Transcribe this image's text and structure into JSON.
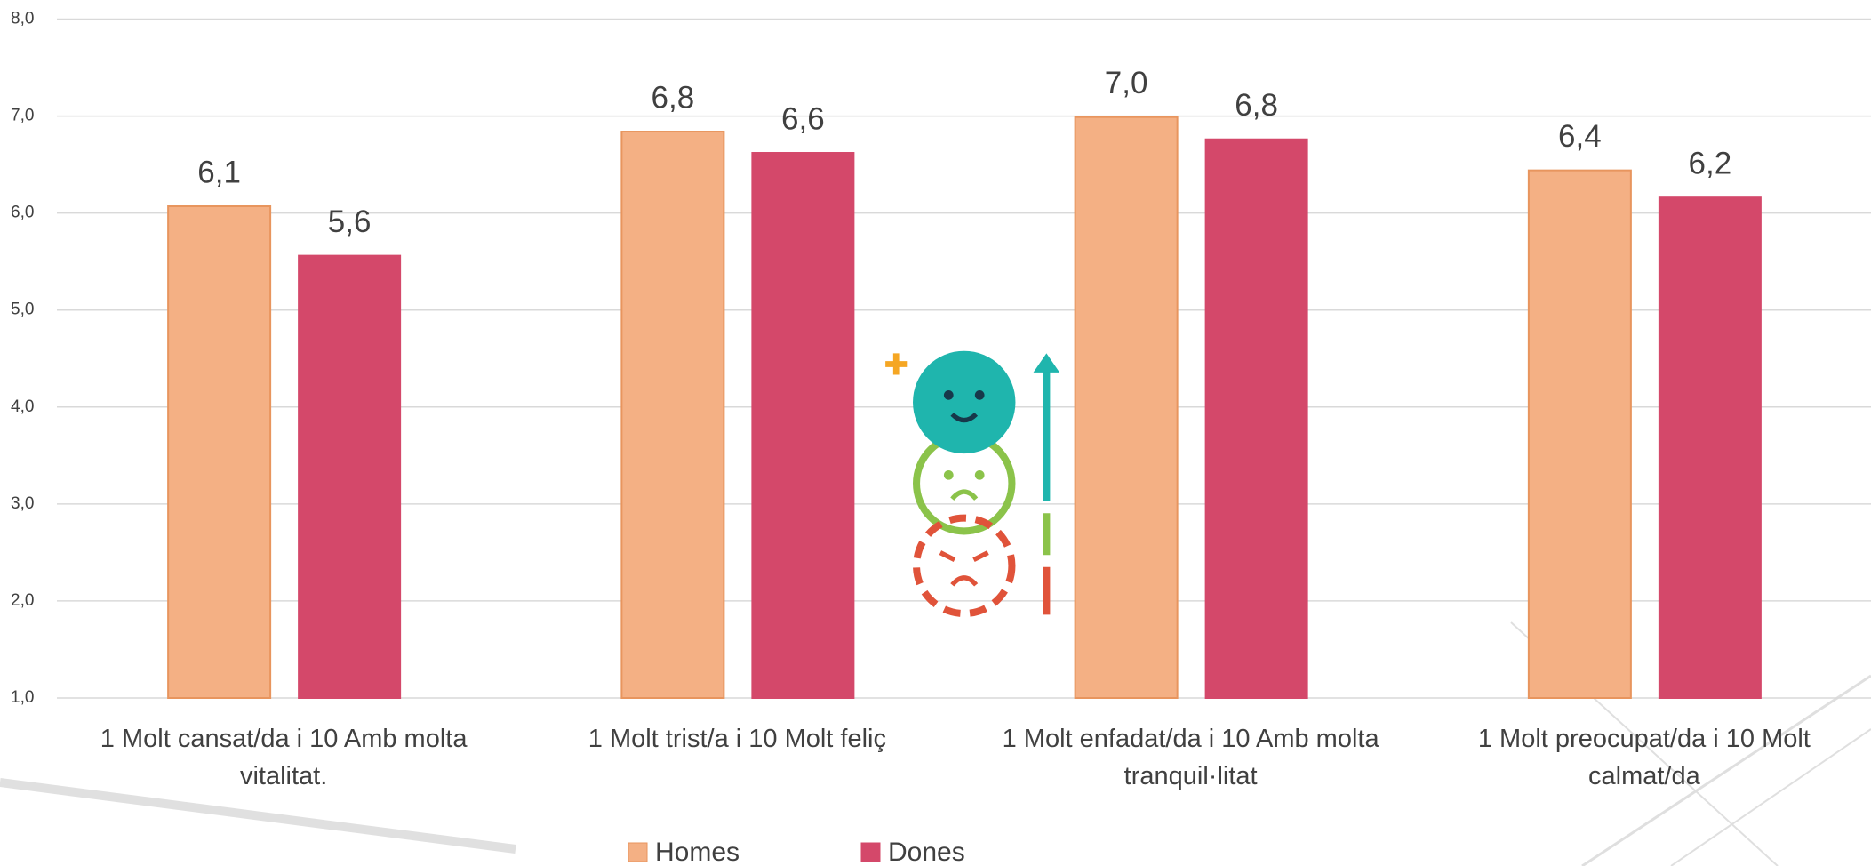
{
  "chart_data": {
    "type": "bar",
    "categories": [
      "1 Molt cansat/da i 10 Amb molta vitalitat.",
      "1 Molt trist/a i 10 Molt feliç",
      "1 Molt enfadat/da i 10 Amb molta tranquil·litat",
      "1 Molt preocupat/da i 10 Molt calmat/da"
    ],
    "series": [
      {
        "name": "Homes",
        "color": "#f4b084",
        "values": [
          6.07,
          6.84,
          6.99,
          6.44
        ],
        "value_labels": [
          "6,1",
          "6,8",
          "7,0",
          "6,4"
        ]
      },
      {
        "name": "Dones",
        "color": "#d4486a",
        "values": [
          5.56,
          6.62,
          6.76,
          6.16
        ],
        "value_labels": [
          "5,6",
          "6,6",
          "6,8",
          "6,2"
        ]
      }
    ],
    "ylim": [
      1,
      8
    ],
    "yticks": [
      {
        "value": 1,
        "label": "1,0"
      },
      {
        "value": 2,
        "label": "2,0"
      },
      {
        "value": 3,
        "label": "3,0"
      },
      {
        "value": 4,
        "label": "4,0"
      },
      {
        "value": 5,
        "label": "5,0"
      },
      {
        "value": 6,
        "label": "6,0"
      },
      {
        "value": 7,
        "label": "7,0"
      },
      {
        "value": 8,
        "label": "8,0"
      }
    ],
    "grid": true,
    "legend": "bottom"
  }
}
